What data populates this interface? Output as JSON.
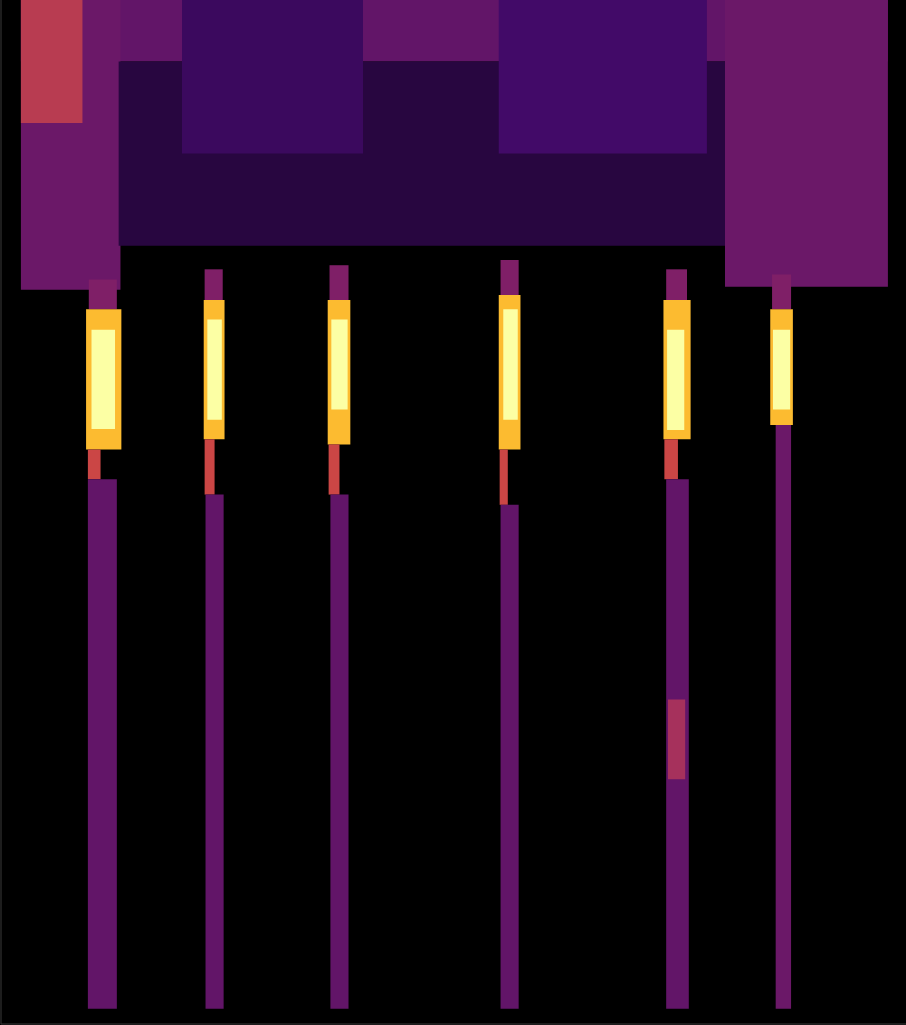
{
  "chart_data": {
    "type": "heatmap",
    "xlim": [
      0,
      100
    ],
    "ylim": [
      0,
      100
    ],
    "tick_labels": false,
    "grid": false,
    "cells": [
      [
        2.2,
        98,
        94,
        100,
        0.28
      ],
      [
        2.2,
        13.2,
        71.7,
        100,
        0.3
      ],
      [
        13,
        80,
        76,
        94,
        0.12
      ],
      [
        20,
        40,
        85,
        100,
        0.18
      ],
      [
        55,
        78,
        85,
        100,
        0.2
      ],
      [
        80,
        98,
        72,
        100,
        0.3
      ],
      [
        2.2,
        9,
        88,
        100,
        0.5
      ],
      [
        9.7,
        12.8,
        69.8,
        72.7,
        0.35
      ],
      [
        9.4,
        13.3,
        56.1,
        69.8,
        0.85
      ],
      [
        10.0,
        12.6,
        58.1,
        67.8,
        1.0
      ],
      [
        9.6,
        11.0,
        53.2,
        56.1,
        0.55
      ],
      [
        9.6,
        12.8,
        1.5,
        53.2,
        0.28
      ],
      [
        22.5,
        24.5,
        70.7,
        73.7,
        0.35
      ],
      [
        22.4,
        24.7,
        57.1,
        70.7,
        0.85
      ],
      [
        22.8,
        24.4,
        59.0,
        68.8,
        1.0
      ],
      [
        22.5,
        23.6,
        51.7,
        57.1,
        0.55
      ],
      [
        22.6,
        24.6,
        1.5,
        51.7,
        0.28
      ],
      [
        36.3,
        38.4,
        70.7,
        74.1,
        0.35
      ],
      [
        36.1,
        38.6,
        56.6,
        70.7,
        0.85
      ],
      [
        36.5,
        38.3,
        60.0,
        68.8,
        1.0
      ],
      [
        36.2,
        37.4,
        51.7,
        56.6,
        0.55
      ],
      [
        36.4,
        38.4,
        1.5,
        51.7,
        0.28
      ],
      [
        55.2,
        57.2,
        71.2,
        74.6,
        0.35
      ],
      [
        55.0,
        57.4,
        56.1,
        71.2,
        0.85
      ],
      [
        55.5,
        57.1,
        59.0,
        69.8,
        1.0
      ],
      [
        55.1,
        56.0,
        50.7,
        56.1,
        0.55
      ],
      [
        55.2,
        57.2,
        1.5,
        50.7,
        0.28
      ],
      [
        73.5,
        75.8,
        70.7,
        73.7,
        0.35
      ],
      [
        73.2,
        76.2,
        57.1,
        70.7,
        0.85
      ],
      [
        73.6,
        75.5,
        58.0,
        67.8,
        1.0
      ],
      [
        73.3,
        74.8,
        53.2,
        57.1,
        0.55
      ],
      [
        73.5,
        76.0,
        1.5,
        53.2,
        0.28
      ],
      [
        73.7,
        75.6,
        23.9,
        31.7,
        0.45
      ],
      [
        85.2,
        87.3,
        69.8,
        73.2,
        0.35
      ],
      [
        85.0,
        87.5,
        58.5,
        69.8,
        0.85
      ],
      [
        85.3,
        87.2,
        60.0,
        67.8,
        1.0
      ],
      [
        85.6,
        87.3,
        1.5,
        58.5,
        0.3
      ]
    ]
  }
}
